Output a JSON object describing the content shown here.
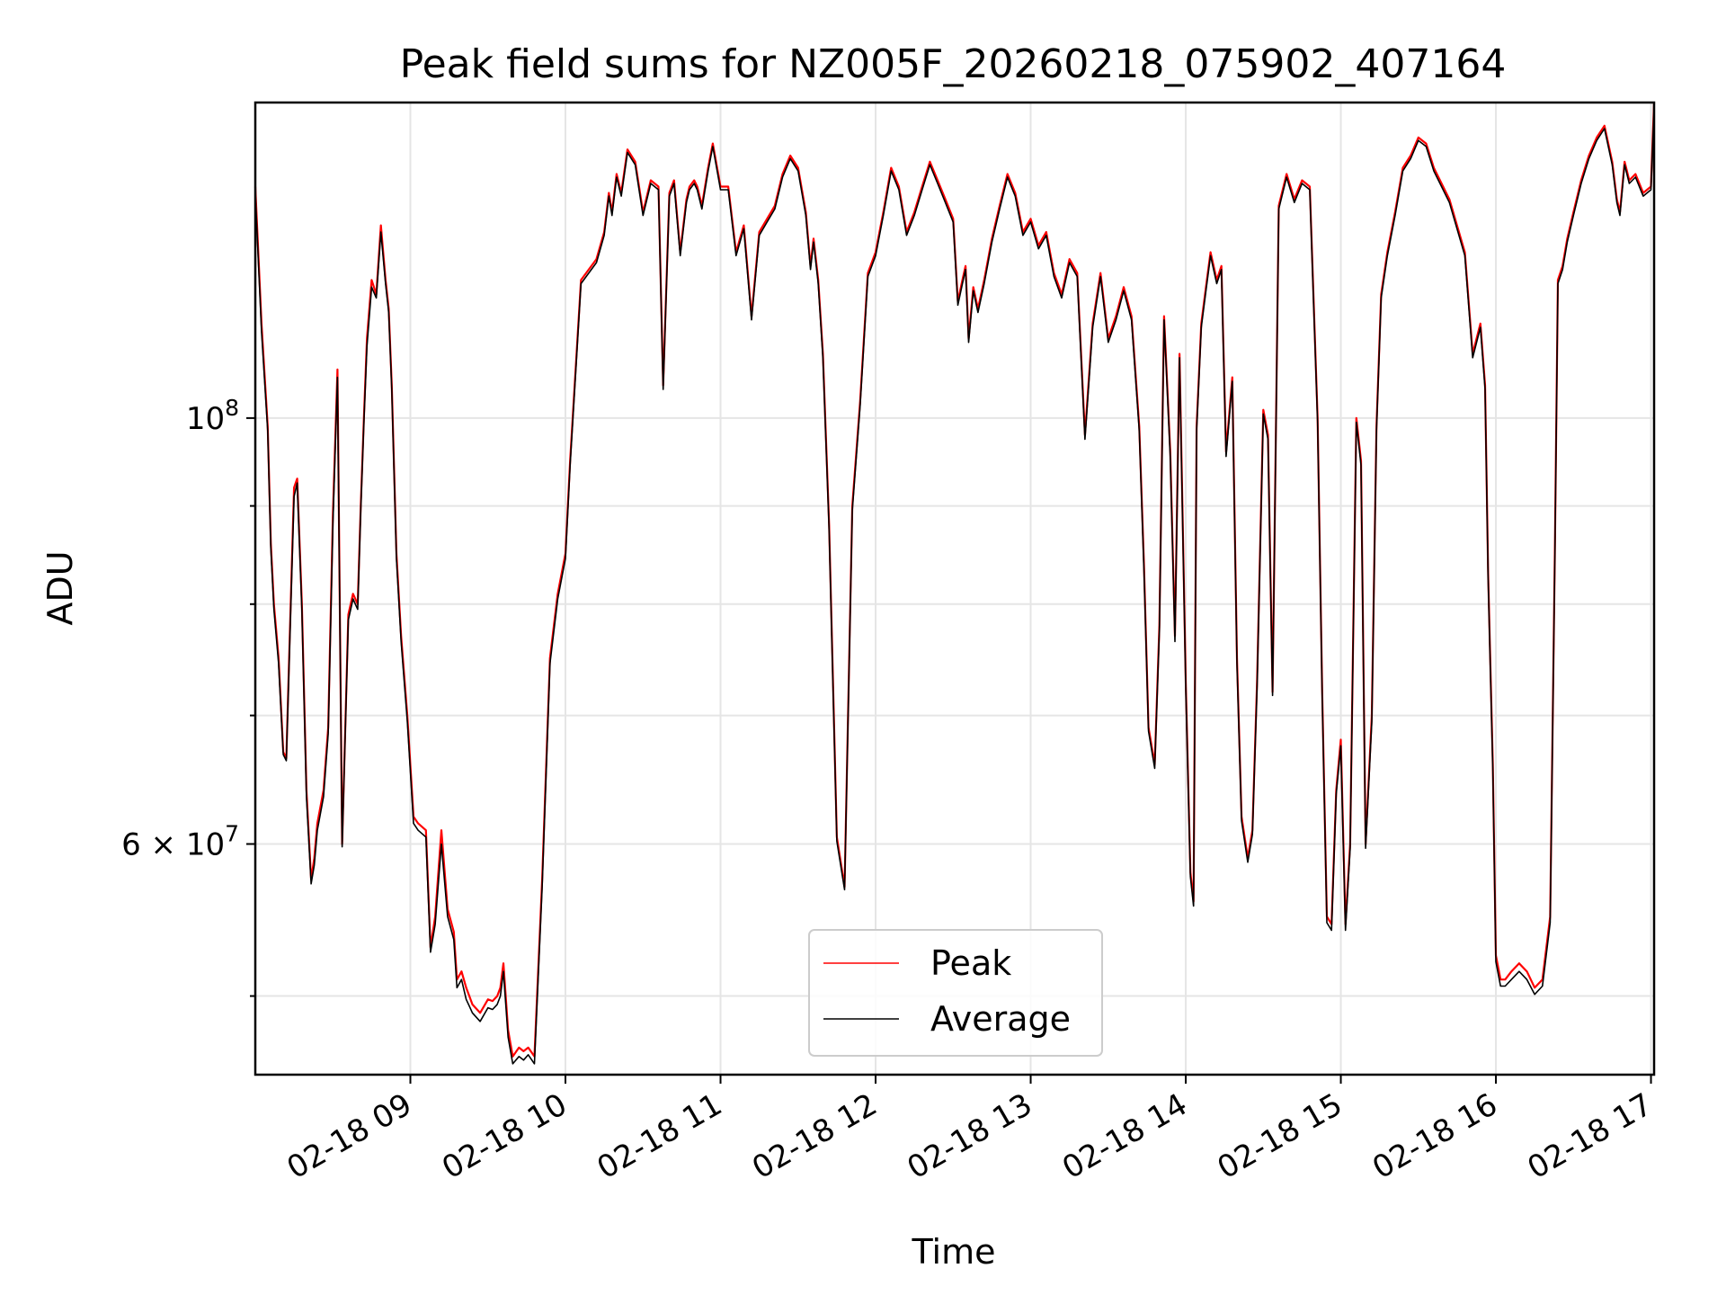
{
  "chart_data": {
    "type": "line",
    "title": "Peak field sums for NZ005F_20260218_075902_407164",
    "xlabel": "Time",
    "ylabel": "ADU",
    "yscale": "log",
    "xlim": [
      8.0,
      17.02
    ],
    "ylim": [
      45500000,
      146000000
    ],
    "grid": true,
    "legend_position": "lower center",
    "x_ticks": [
      {
        "value": 9,
        "label": "02-18 09"
      },
      {
        "value": 10,
        "label": "02-18 10"
      },
      {
        "value": 11,
        "label": "02-18 11"
      },
      {
        "value": 12,
        "label": "02-18 12"
      },
      {
        "value": 13,
        "label": "02-18 13"
      },
      {
        "value": 14,
        "label": "02-18 14"
      },
      {
        "value": 15,
        "label": "02-18 15"
      },
      {
        "value": 16,
        "label": "02-18 16"
      },
      {
        "value": 17,
        "label": "02-18 17"
      }
    ],
    "y_major_ticks": [
      {
        "value": 100000000,
        "base": "10",
        "exp": "8"
      },
      {
        "value": 60000000,
        "mant": "6",
        "base": "10",
        "exp": "7"
      }
    ],
    "y_minor_ticks": [
      50000000,
      70000000,
      80000000,
      90000000
    ],
    "x_unit": "hour of 2026-02-18",
    "series": [
      {
        "name": "Peak",
        "color": "#ff0000",
        "x": [
          8.0,
          8.04,
          8.08,
          8.1,
          8.12,
          8.15,
          8.18,
          8.2,
          8.22,
          8.25,
          8.27,
          8.3,
          8.33,
          8.36,
          8.38,
          8.4,
          8.44,
          8.47,
          8.5,
          8.53,
          8.56,
          8.6,
          8.63,
          8.66,
          8.68,
          8.7,
          8.72,
          8.75,
          8.78,
          8.81,
          8.84,
          8.86,
          8.88,
          8.91,
          8.94,
          8.98,
          9.02,
          9.05,
          9.1,
          9.13,
          9.16,
          9.2,
          9.24,
          9.28,
          9.3,
          9.33,
          9.36,
          9.38,
          9.4,
          9.45,
          9.5,
          9.53,
          9.56,
          9.58,
          9.6,
          9.63,
          9.66,
          9.7,
          9.73,
          9.76,
          9.8,
          9.85,
          9.9,
          9.95,
          10.0,
          10.03,
          10.1,
          10.2,
          10.25,
          10.28,
          10.3,
          10.33,
          10.36,
          10.4,
          10.45,
          10.5,
          10.55,
          10.6,
          10.63,
          10.67,
          10.7,
          10.74,
          10.78,
          10.8,
          10.83,
          10.85,
          10.88,
          10.92,
          10.95,
          11.0,
          11.05,
          11.1,
          11.15,
          11.2,
          11.25,
          11.3,
          11.35,
          11.4,
          11.45,
          11.5,
          11.55,
          11.58,
          11.6,
          11.63,
          11.66,
          11.7,
          11.75,
          11.8,
          11.85,
          11.9,
          11.95,
          12.0,
          12.05,
          12.1,
          12.15,
          12.2,
          12.25,
          12.3,
          12.35,
          12.4,
          12.45,
          12.5,
          12.53,
          12.56,
          12.58,
          12.6,
          12.63,
          12.66,
          12.7,
          12.75,
          12.8,
          12.85,
          12.9,
          12.95,
          13.0,
          13.05,
          13.1,
          13.15,
          13.2,
          13.25,
          13.3,
          13.35,
          13.4,
          13.45,
          13.5,
          13.55,
          13.6,
          13.65,
          13.7,
          13.73,
          13.76,
          13.8,
          13.83,
          13.86,
          13.9,
          13.93,
          13.96,
          14.0,
          14.03,
          14.05,
          14.07,
          14.1,
          14.13,
          14.16,
          14.2,
          14.23,
          14.26,
          14.3,
          14.33,
          14.36,
          14.4,
          14.43,
          14.46,
          14.5,
          14.53,
          14.56,
          14.6,
          14.65,
          14.7,
          14.75,
          14.8,
          14.85,
          14.88,
          14.91,
          14.94,
          14.97,
          15.0,
          15.03,
          15.06,
          15.1,
          15.13,
          15.16,
          15.2,
          15.23,
          15.26,
          15.3,
          15.35,
          15.4,
          15.45,
          15.5,
          15.55,
          15.6,
          15.7,
          15.8,
          15.85,
          15.9,
          15.93,
          15.95,
          15.98,
          16.0,
          16.03,
          16.06,
          16.1,
          16.15,
          16.2,
          16.25,
          16.3,
          16.35,
          16.38,
          16.4,
          16.43,
          16.46,
          16.5,
          16.55,
          16.6,
          16.65,
          16.7,
          16.75,
          16.78,
          16.8,
          16.83,
          16.86,
          16.9,
          16.95,
          17.0,
          17.02
        ],
        "values": [
          132000000,
          112000000,
          99000000,
          86000000,
          80000000,
          75000000,
          67000000,
          66500000,
          76000000,
          92000000,
          93000000,
          80000000,
          64000000,
          57500000,
          59000000,
          61500000,
          64000000,
          69000000,
          89000000,
          106000000,
          60000000,
          79000000,
          81000000,
          80000000,
          90000000,
          100000000,
          110000000,
          118000000,
          116000000,
          126000000,
          118000000,
          114000000,
          104000000,
          85000000,
          77000000,
          70000000,
          62000000,
          61500000,
          61000000,
          53000000,
          55000000,
          61000000,
          55500000,
          54000000,
          51000000,
          51500000,
          50500000,
          50000000,
          49500000,
          49000000,
          49800000,
          49700000,
          50000000,
          50500000,
          52000000,
          48000000,
          46500000,
          47000000,
          46800000,
          47000000,
          46500000,
          57500000,
          75000000,
          81000000,
          85000000,
          95000000,
          118000000,
          121000000,
          125000000,
          131000000,
          128000000,
          134000000,
          131000000,
          138000000,
          136000000,
          128000000,
          133000000,
          132000000,
          104000000,
          131000000,
          133000000,
          122000000,
          130000000,
          132000000,
          133000000,
          132000000,
          129000000,
          135000000,
          139000000,
          132000000,
          132000000,
          122000000,
          126000000,
          113000000,
          125000000,
          127000000,
          129000000,
          134000000,
          137000000,
          135000000,
          128000000,
          120000000,
          124000000,
          118000000,
          108000000,
          88000000,
          60500000,
          57000000,
          90000000,
          102000000,
          119000000,
          122000000,
          128000000,
          135000000,
          132000000,
          125000000,
          128000000,
          132000000,
          136000000,
          133000000,
          130000000,
          127000000,
          115000000,
          118000000,
          120000000,
          110000000,
          117000000,
          114000000,
          118000000,
          124000000,
          129000000,
          134000000,
          131000000,
          125000000,
          127000000,
          123000000,
          125000000,
          119000000,
          116000000,
          121000000,
          119000000,
          98000000,
          112000000,
          119000000,
          110000000,
          113000000,
          117000000,
          113000000,
          99000000,
          84000000,
          69000000,
          66000000,
          78000000,
          113000000,
          96000000,
          77000000,
          108000000,
          73000000,
          58000000,
          56000000,
          99000000,
          112000000,
          117000000,
          122000000,
          118000000,
          120000000,
          96000000,
          105000000,
          75000000,
          62000000,
          59000000,
          61000000,
          73000000,
          101000000,
          98000000,
          72000000,
          129000000,
          134000000,
          130000000,
          133000000,
          132000000,
          100000000,
          72000000,
          55000000,
          54500000,
          64000000,
          68000000,
          54500000,
          60000000,
          100000000,
          95000000,
          60000000,
          70000000,
          99000000,
          116000000,
          122000000,
          128000000,
          135000000,
          137000000,
          140000000,
          139000000,
          135000000,
          130000000,
          122000000,
          108000000,
          112000000,
          104000000,
          83000000,
          66000000,
          52500000,
          51000000,
          51000000,
          51500000,
          52000000,
          51500000,
          50500000,
          51000000,
          55000000,
          85000000,
          118000000,
          120000000,
          124000000,
          128000000,
          133000000,
          137000000,
          140000000,
          142000000,
          136000000,
          130000000,
          128000000,
          136000000,
          133000000,
          134000000,
          131000000,
          132000000,
          146000000
        ]
      },
      {
        "name": "Average",
        "color": "#000000",
        "x": [
          8.0,
          8.04,
          8.08,
          8.1,
          8.12,
          8.15,
          8.18,
          8.2,
          8.22,
          8.25,
          8.27,
          8.3,
          8.33,
          8.36,
          8.38,
          8.4,
          8.44,
          8.47,
          8.5,
          8.53,
          8.56,
          8.6,
          8.63,
          8.66,
          8.68,
          8.7,
          8.72,
          8.75,
          8.78,
          8.81,
          8.84,
          8.86,
          8.88,
          8.91,
          8.94,
          8.98,
          9.02,
          9.05,
          9.1,
          9.13,
          9.16,
          9.2,
          9.24,
          9.28,
          9.3,
          9.33,
          9.36,
          9.38,
          9.4,
          9.45,
          9.5,
          9.53,
          9.56,
          9.58,
          9.6,
          9.63,
          9.66,
          9.7,
          9.73,
          9.76,
          9.8,
          9.85,
          9.9,
          9.95,
          10.0,
          10.03,
          10.1,
          10.2,
          10.25,
          10.28,
          10.3,
          10.33,
          10.36,
          10.4,
          10.45,
          10.5,
          10.55,
          10.6,
          10.63,
          10.67,
          10.7,
          10.74,
          10.78,
          10.8,
          10.83,
          10.85,
          10.88,
          10.92,
          10.95,
          11.0,
          11.05,
          11.1,
          11.15,
          11.2,
          11.25,
          11.3,
          11.35,
          11.4,
          11.45,
          11.5,
          11.55,
          11.58,
          11.6,
          11.63,
          11.66,
          11.7,
          11.75,
          11.8,
          11.85,
          11.9,
          11.95,
          12.0,
          12.05,
          12.1,
          12.15,
          12.2,
          12.25,
          12.3,
          12.35,
          12.4,
          12.45,
          12.5,
          12.53,
          12.56,
          12.58,
          12.6,
          12.63,
          12.66,
          12.7,
          12.75,
          12.8,
          12.85,
          12.9,
          12.95,
          13.0,
          13.05,
          13.1,
          13.15,
          13.2,
          13.25,
          13.3,
          13.35,
          13.4,
          13.45,
          13.5,
          13.55,
          13.6,
          13.65,
          13.7,
          13.73,
          13.76,
          13.8,
          13.83,
          13.86,
          13.9,
          13.93,
          13.96,
          14.0,
          14.03,
          14.05,
          14.07,
          14.1,
          14.13,
          14.16,
          14.2,
          14.23,
          14.26,
          14.3,
          14.33,
          14.36,
          14.4,
          14.43,
          14.46,
          14.5,
          14.53,
          14.56,
          14.6,
          14.65,
          14.7,
          14.75,
          14.8,
          14.85,
          14.88,
          14.91,
          14.94,
          14.97,
          15.0,
          15.03,
          15.06,
          15.1,
          15.13,
          15.16,
          15.2,
          15.23,
          15.26,
          15.3,
          15.35,
          15.4,
          15.45,
          15.5,
          15.55,
          15.6,
          15.7,
          15.8,
          15.85,
          15.9,
          15.93,
          15.95,
          15.98,
          16.0,
          16.03,
          16.06,
          16.1,
          16.15,
          16.2,
          16.25,
          16.3,
          16.35,
          16.38,
          16.4,
          16.43,
          16.46,
          16.5,
          16.55,
          16.6,
          16.65,
          16.7,
          16.75,
          16.78,
          16.8,
          16.83,
          16.86,
          16.9,
          16.95,
          17.0,
          17.02
        ],
        "values": [
          131000000,
          111000000,
          98500000,
          85500000,
          79500000,
          74500000,
          66800000,
          66300000,
          75500000,
          91000000,
          92500000,
          79500000,
          63500000,
          57200000,
          58500000,
          61000000,
          63500000,
          68500000,
          88000000,
          105000000,
          59800000,
          78500000,
          80500000,
          79500000,
          89500000,
          99500000,
          109000000,
          117000000,
          115500000,
          125000000,
          117500000,
          113500000,
          103500000,
          84500000,
          76500000,
          69500000,
          61500000,
          61000000,
          60500000,
          52700000,
          54500000,
          60000000,
          55000000,
          53500000,
          50500000,
          51000000,
          49800000,
          49400000,
          49000000,
          48500000,
          49300000,
          49200000,
          49500000,
          50000000,
          51500000,
          47600000,
          46100000,
          46500000,
          46300000,
          46600000,
          46100000,
          57000000,
          74500000,
          80500000,
          84500000,
          94500000,
          117500000,
          120500000,
          124500000,
          130500000,
          127500000,
          133500000,
          130500000,
          137500000,
          135500000,
          127500000,
          132500000,
          131500000,
          103500000,
          130500000,
          132500000,
          121500000,
          129500000,
          131500000,
          132500000,
          131500000,
          128500000,
          134500000,
          138500000,
          131500000,
          131500000,
          121500000,
          125500000,
          112500000,
          124500000,
          126500000,
          128500000,
          133500000,
          136500000,
          134500000,
          127500000,
          119500000,
          123500000,
          117500000,
          107500000,
          87500000,
          60200000,
          56800000,
          89500000,
          101500000,
          118500000,
          121500000,
          127500000,
          134500000,
          131500000,
          124500000,
          127500000,
          131500000,
          135500000,
          132500000,
          129500000,
          126500000,
          114500000,
          117500000,
          119500000,
          109500000,
          116500000,
          113500000,
          117500000,
          123500000,
          128500000,
          133500000,
          130500000,
          124500000,
          126500000,
          122500000,
          124500000,
          118500000,
          115500000,
          120500000,
          118500000,
          97500000,
          111500000,
          118500000,
          109500000,
          112500000,
          116500000,
          112500000,
          98500000,
          83500000,
          68700000,
          65700000,
          77500000,
          112500000,
          95500000,
          76500000,
          107500000,
          72500000,
          57700000,
          55700000,
          98500000,
          111500000,
          116500000,
          121500000,
          117500000,
          119500000,
          95500000,
          104500000,
          74500000,
          61700000,
          58700000,
          60700000,
          72500000,
          100500000,
          97500000,
          71700000,
          128500000,
          133500000,
          129500000,
          132500000,
          131500000,
          99500000,
          71700000,
          54600000,
          54100000,
          63700000,
          67500000,
          54100000,
          59700000,
          99500000,
          94500000,
          59700000,
          69500000,
          98500000,
          115500000,
          121500000,
          127500000,
          134500000,
          136500000,
          139500000,
          138500000,
          134500000,
          129500000,
          121500000,
          107500000,
          111500000,
          103500000,
          82500000,
          65700000,
          52100000,
          50600000,
          50600000,
          51000000,
          51500000,
          51000000,
          50100000,
          50600000,
          54600000,
          84500000,
          117500000,
          119500000,
          123500000,
          127500000,
          132500000,
          136500000,
          139500000,
          141500000,
          135500000,
          129500000,
          127500000,
          135500000,
          132500000,
          133500000,
          130500000,
          131500000,
          145000000
        ]
      }
    ]
  }
}
